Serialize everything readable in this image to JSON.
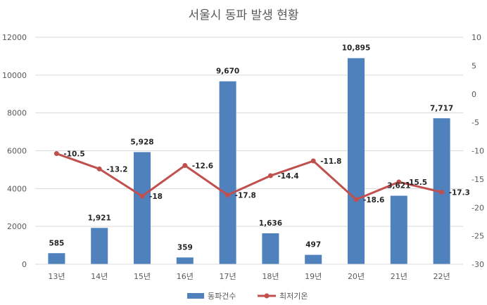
{
  "chart_data": {
    "type": "bar+line",
    "title": "서울시 동파 발생 현황",
    "categories": [
      "13년",
      "14년",
      "15년",
      "16년",
      "17년",
      "18년",
      "19년",
      "20년",
      "21년",
      "22년"
    ],
    "series": [
      {
        "name": "동파건수",
        "type": "bar",
        "axis": "left",
        "color": "#4F81BD",
        "values": [
          585,
          1921,
          5928,
          359,
          9670,
          1636,
          497,
          10895,
          3621,
          7717
        ],
        "labels": [
          "585",
          "1,921",
          "5,928",
          "359",
          "9,670",
          "1,636",
          "497",
          "10,895",
          "3,621",
          "7,717"
        ]
      },
      {
        "name": "최저기온",
        "type": "line",
        "axis": "right",
        "color": "#C0504D",
        "values": [
          -10.5,
          -13.2,
          -18,
          -12.6,
          -17.8,
          -14.4,
          -11.8,
          -18.6,
          -15.5,
          -17.3
        ],
        "labels": [
          "-10.5",
          "-13.2",
          "-18",
          "-12.6",
          "-17.8",
          "-14.4",
          "-11.8",
          "-18.6",
          "-15.5",
          "-17.3"
        ]
      }
    ],
    "y_left": {
      "min": 0,
      "max": 12000,
      "step": 2000,
      "ticks": [
        "0",
        "2000",
        "4000",
        "6000",
        "8000",
        "10000",
        "12000"
      ]
    },
    "y_right": {
      "min": -30,
      "max": 10,
      "step": 5,
      "ticks": [
        "-30",
        "-25",
        "-20",
        "-15",
        "-10",
        "-5",
        "0",
        "5",
        "10"
      ]
    },
    "grid": true,
    "legend_position": "bottom",
    "gridline_color": "#D9D9D9"
  }
}
